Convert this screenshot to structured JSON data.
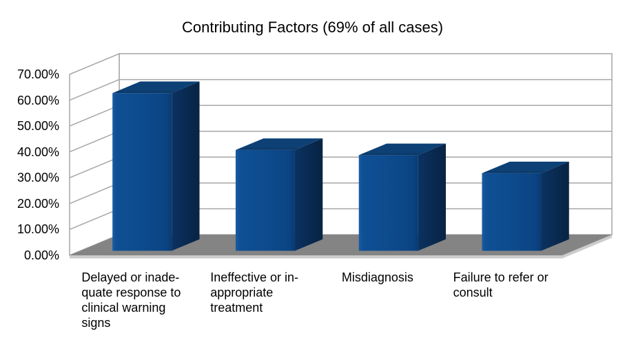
{
  "title": "Contributing Factors (69% of all cases)",
  "chart_data": {
    "type": "bar",
    "projection": "3d-column",
    "title": "Contributing Factors (69% of all cases)",
    "categories": [
      {
        "name": "Delayed or inadequate response to clinical warning signs",
        "lines": [
          "Delayed or inade-",
          "quate response to",
          "clinical warning",
          "signs"
        ]
      },
      {
        "name": "Ineffective or inappropriate treatment",
        "lines": [
          "Ineffective or in-",
          "appropriate",
          "treatment"
        ]
      },
      {
        "name": "Misdiagnosis",
        "lines": [
          "Misdiagnosis"
        ]
      },
      {
        "name": "Failure to refer or consult",
        "lines": [
          "Failure to refer or",
          "consult"
        ]
      }
    ],
    "values": [
      61,
      39,
      37,
      30
    ],
    "unit": "%",
    "xlabel": "",
    "ylabel": "",
    "ylim": [
      0,
      70
    ],
    "ytick_step": 10,
    "ytick_labels": [
      "0.00%",
      "10.00%",
      "20.00%",
      "30.00%",
      "40.00%",
      "50.00%",
      "60.00%",
      "70.00%"
    ],
    "grid": true,
    "legend": false,
    "colors": {
      "bar_front": "#0d4b8d",
      "bar_front_light": "#1a5ba3",
      "bar_front_dark": "#093a72",
      "bar_top": "#0d4176",
      "bar_top_dark": "#0a3560",
      "bar_side": "#0b3261",
      "bar_side_dark": "#082547",
      "floor": "#848484",
      "floor_edge": "#cccccc",
      "wall": "#ffffff",
      "grid_line": "#a6a6a6",
      "background": "#ffffff",
      "text": "#000000"
    }
  }
}
